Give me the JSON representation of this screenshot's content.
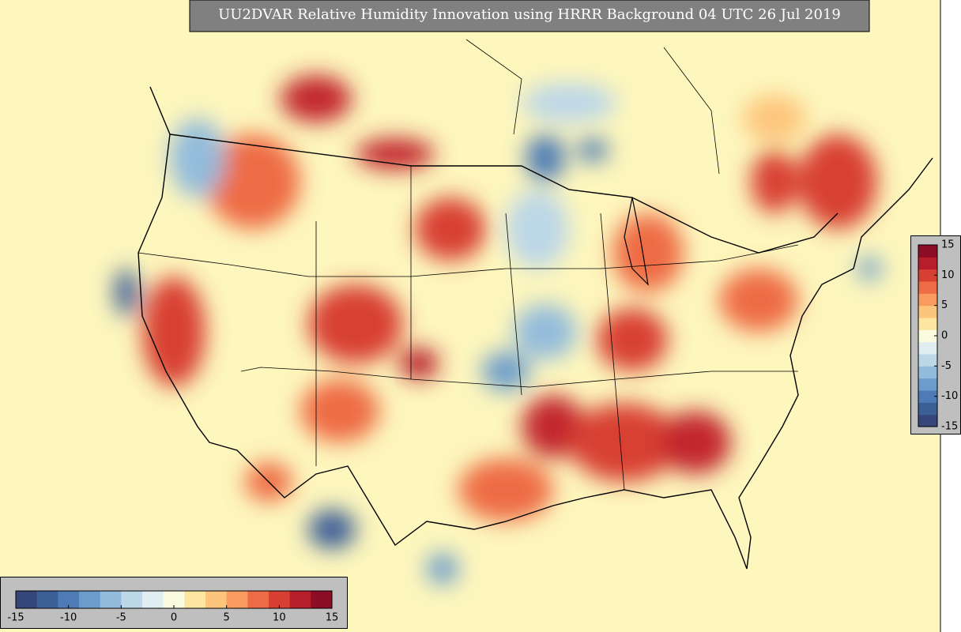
{
  "title": "UU2DVAR Relative Humidity Innovation using HRRR Background 04 UTC 26 Jul 2019",
  "colorbar": {
    "range": [
      -15,
      15
    ],
    "ticks": [
      -15,
      -10,
      -5,
      0,
      5,
      10,
      15
    ],
    "colors": [
      "#34467a",
      "#3d5f97",
      "#4e7bb5",
      "#6c9ccb",
      "#93bcdc",
      "#bcd7e8",
      "#e0eef2",
      "#fbfbe0",
      "#fde7a0",
      "#fdc57c",
      "#f99b5e",
      "#ee6c45",
      "#d83f33",
      "#b81d2b",
      "#8c0d25"
    ]
  }
}
